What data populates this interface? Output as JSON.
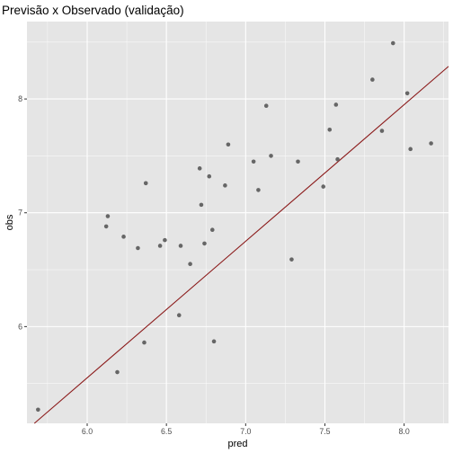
{
  "chart_data": {
    "type": "scatter",
    "title": "Previsão x Observado (validação)",
    "xlabel": "pred",
    "ylabel": "obs",
    "xlim": [
      5.62,
      8.28
    ],
    "ylim": [
      5.15,
      8.68
    ],
    "x_ticks": [
      6.0,
      6.5,
      7.0,
      7.5,
      8.0
    ],
    "x_tick_labels": [
      "6.0",
      "6.5",
      "7.0",
      "7.5",
      "8.0"
    ],
    "y_ticks": [
      6,
      7,
      8
    ],
    "y_tick_labels": [
      "6",
      "7",
      "8"
    ],
    "grid": true,
    "background": "#e5e5e5",
    "grid_major_color": "#ffffff",
    "point_color": "#666666",
    "line": {
      "color": "#8b1a1a",
      "slope": 1.2,
      "intercept": -1.65
    },
    "points": [
      {
        "x": 5.69,
        "y": 5.27
      },
      {
        "x": 6.12,
        "y": 6.88
      },
      {
        "x": 6.13,
        "y": 6.97
      },
      {
        "x": 6.19,
        "y": 5.6
      },
      {
        "x": 6.23,
        "y": 6.79
      },
      {
        "x": 6.32,
        "y": 6.69
      },
      {
        "x": 6.36,
        "y": 5.86
      },
      {
        "x": 6.37,
        "y": 7.26
      },
      {
        "x": 6.46,
        "y": 6.71
      },
      {
        "x": 6.49,
        "y": 6.76
      },
      {
        "x": 6.58,
        "y": 6.1
      },
      {
        "x": 6.59,
        "y": 6.71
      },
      {
        "x": 6.65,
        "y": 6.55
      },
      {
        "x": 6.71,
        "y": 7.39
      },
      {
        "x": 6.72,
        "y": 7.07
      },
      {
        "x": 6.74,
        "y": 6.73
      },
      {
        "x": 6.77,
        "y": 7.32
      },
      {
        "x": 6.79,
        "y": 6.85
      },
      {
        "x": 6.8,
        "y": 5.87
      },
      {
        "x": 6.87,
        "y": 7.24
      },
      {
        "x": 6.89,
        "y": 7.6
      },
      {
        "x": 7.05,
        "y": 7.45
      },
      {
        "x": 7.08,
        "y": 7.2
      },
      {
        "x": 7.13,
        "y": 7.94
      },
      {
        "x": 7.16,
        "y": 7.5
      },
      {
        "x": 7.29,
        "y": 6.59
      },
      {
        "x": 7.33,
        "y": 7.45
      },
      {
        "x": 7.49,
        "y": 7.23
      },
      {
        "x": 7.53,
        "y": 7.73
      },
      {
        "x": 7.57,
        "y": 7.95
      },
      {
        "x": 7.58,
        "y": 7.47
      },
      {
        "x": 7.8,
        "y": 8.17
      },
      {
        "x": 7.86,
        "y": 7.72
      },
      {
        "x": 7.93,
        "y": 8.49
      },
      {
        "x": 8.02,
        "y": 8.05
      },
      {
        "x": 8.04,
        "y": 7.56
      },
      {
        "x": 8.17,
        "y": 7.61
      }
    ]
  }
}
